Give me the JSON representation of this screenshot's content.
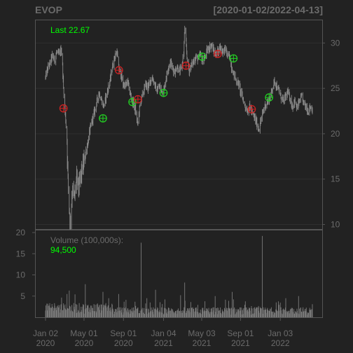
{
  "chart_data": {
    "type": "line",
    "ticker": "EVOP",
    "date_range": "[2020-01-02/2022-04-13]",
    "price_panel": {
      "last_label": "Last 22.67",
      "y_ticks": [
        30,
        25,
        20,
        15,
        10
      ],
      "ylim": [
        9.5,
        32.5
      ],
      "price_series": [
        [
          "2020-01-02",
          26.2
        ],
        [
          "2020-01-09",
          27.2
        ],
        [
          "2020-01-16",
          27.8
        ],
        [
          "2020-01-23",
          28.6
        ],
        [
          "2020-01-30",
          28.1
        ],
        [
          "2020-02-06",
          29.0
        ],
        [
          "2020-02-13",
          28.7
        ],
        [
          "2020-02-20",
          29.3
        ],
        [
          "2020-02-24",
          27.5
        ],
        [
          "2020-02-27",
          25.0
        ],
        [
          "2020-03-02",
          22.9
        ],
        [
          "2020-03-05",
          21.5
        ],
        [
          "2020-03-09",
          19.0
        ],
        [
          "2020-03-12",
          15.0
        ],
        [
          "2020-03-16",
          12.0
        ],
        [
          "2020-03-19",
          10.2
        ],
        [
          "2020-03-23",
          12.5
        ],
        [
          "2020-03-26",
          14.0
        ],
        [
          "2020-04-01",
          12.8
        ],
        [
          "2020-04-08",
          15.2
        ],
        [
          "2020-04-15",
          14.0
        ],
        [
          "2020-04-22",
          15.5
        ],
        [
          "2020-04-29",
          16.5
        ],
        [
          "2020-05-06",
          18.0
        ],
        [
          "2020-05-13",
          19.0
        ],
        [
          "2020-05-20",
          20.5
        ],
        [
          "2020-05-27",
          21.5
        ],
        [
          "2020-06-03",
          22.5
        ],
        [
          "2020-06-10",
          23.5
        ],
        [
          "2020-06-17",
          24.5
        ],
        [
          "2020-06-24",
          23.8
        ],
        [
          "2020-07-01",
          23.0
        ],
        [
          "2020-07-08",
          24.0
        ],
        [
          "2020-07-15",
          25.0
        ],
        [
          "2020-07-22",
          26.0
        ],
        [
          "2020-07-29",
          27.5
        ],
        [
          "2020-08-05",
          28.5
        ],
        [
          "2020-08-12",
          29.0
        ],
        [
          "2020-08-17",
          27.2
        ],
        [
          "2020-08-24",
          26.5
        ],
        [
          "2020-08-31",
          25.5
        ],
        [
          "2020-09-07",
          25.2
        ],
        [
          "2020-09-14",
          25.8
        ],
        [
          "2020-09-21",
          24.5
        ],
        [
          "2020-09-28",
          23.7
        ],
        [
          "2020-10-05",
          23.0
        ],
        [
          "2020-10-12",
          22.0
        ],
        [
          "2020-10-15",
          21.0
        ],
        [
          "2020-10-22",
          23.0
        ],
        [
          "2020-10-26",
          23.8
        ],
        [
          "2020-11-02",
          24.5
        ],
        [
          "2020-11-09",
          25.5
        ],
        [
          "2020-11-16",
          25.0
        ],
        [
          "2020-11-23",
          25.8
        ],
        [
          "2020-11-30",
          26.2
        ],
        [
          "2020-12-07",
          25.5
        ],
        [
          "2020-12-14",
          24.6
        ],
        [
          "2020-12-21",
          25.3
        ],
        [
          "2020-12-28",
          24.8
        ],
        [
          "2021-01-04",
          24.6
        ],
        [
          "2021-01-11",
          26.0
        ],
        [
          "2021-01-18",
          27.2
        ],
        [
          "2021-01-25",
          28.0
        ],
        [
          "2021-02-01",
          27.2
        ],
        [
          "2021-02-08",
          26.8
        ],
        [
          "2021-02-15",
          27.5
        ],
        [
          "2021-02-22",
          26.8
        ],
        [
          "2021-03-01",
          27.2
        ],
        [
          "2021-03-08",
          29.0
        ],
        [
          "2021-03-11",
          31.7
        ],
        [
          "2021-03-18",
          28.5
        ],
        [
          "2021-03-25",
          27.0
        ],
        [
          "2021-04-01",
          27.5
        ],
        [
          "2021-04-08",
          28.0
        ],
        [
          "2021-04-15",
          28.5
        ],
        [
          "2021-04-22",
          28.2
        ],
        [
          "2021-04-29",
          28.7
        ],
        [
          "2021-05-06",
          28.0
        ],
        [
          "2021-05-13",
          28.4
        ],
        [
          "2021-05-20",
          29.2
        ],
        [
          "2021-05-27",
          29.5
        ],
        [
          "2021-06-03",
          29.8
        ],
        [
          "2021-06-10",
          29.0
        ],
        [
          "2021-06-17",
          28.8
        ],
        [
          "2021-06-24",
          29.2
        ],
        [
          "2021-07-01",
          29.6
        ],
        [
          "2021-07-08",
          29.0
        ],
        [
          "2021-07-15",
          29.4
        ],
        [
          "2021-07-22",
          28.7
        ],
        [
          "2021-07-29",
          28.4
        ],
        [
          "2021-08-05",
          27.2
        ],
        [
          "2021-08-12",
          26.5
        ],
        [
          "2021-08-19",
          25.8
        ],
        [
          "2021-08-26",
          25.5
        ],
        [
          "2021-09-02",
          24.5
        ],
        [
          "2021-09-09",
          23.8
        ],
        [
          "2021-09-16",
          23.0
        ],
        [
          "2021-09-23",
          22.5
        ],
        [
          "2021-09-30",
          23.0
        ],
        [
          "2021-10-07",
          22.3
        ],
        [
          "2021-10-14",
          21.8
        ],
        [
          "2021-10-21",
          21.2
        ],
        [
          "2021-10-28",
          20.5
        ],
        [
          "2021-11-04",
          21.5
        ],
        [
          "2021-11-11",
          22.5
        ],
        [
          "2021-11-18",
          23.2
        ],
        [
          "2021-11-25",
          23.5
        ],
        [
          "2021-12-02",
          24.0
        ],
        [
          "2021-12-09",
          25.0
        ],
        [
          "2021-12-16",
          25.8
        ],
        [
          "2021-12-23",
          25.2
        ],
        [
          "2021-12-30",
          24.7
        ],
        [
          "2022-01-06",
          24.0
        ],
        [
          "2022-01-13",
          23.5
        ],
        [
          "2022-01-20",
          24.2
        ],
        [
          "2022-01-27",
          24.5
        ],
        [
          "2022-02-03",
          23.8
        ],
        [
          "2022-02-10",
          23.0
        ],
        [
          "2022-02-17",
          23.6
        ],
        [
          "2022-02-24",
          22.8
        ],
        [
          "2022-03-03",
          23.5
        ],
        [
          "2022-03-10",
          24.0
        ],
        [
          "2022-03-17",
          23.4
        ],
        [
          "2022-03-24",
          23.0
        ],
        [
          "2022-03-31",
          22.5
        ],
        [
          "2022-04-07",
          23.0
        ],
        [
          "2022-04-13",
          22.67
        ]
      ],
      "markers": [
        {
          "date": "2020-02-27",
          "price": 22.8,
          "color": "#cc2222"
        },
        {
          "date": "2020-06-29",
          "price": 21.7,
          "color": "#22cc22"
        },
        {
          "date": "2020-08-18",
          "price": 27.0,
          "color": "#cc2222"
        },
        {
          "date": "2020-09-29",
          "price": 23.5,
          "color": "#22cc22"
        },
        {
          "date": "2020-10-16",
          "price": 23.8,
          "color": "#cc2222"
        },
        {
          "date": "2021-01-04",
          "price": 24.5,
          "color": "#22cc22"
        },
        {
          "date": "2021-03-15",
          "price": 27.5,
          "color": "#cc2222"
        },
        {
          "date": "2021-05-04",
          "price": 28.5,
          "color": "#22cc22"
        },
        {
          "date": "2021-06-22",
          "price": 28.8,
          "color": "#cc2222"
        },
        {
          "date": "2021-08-10",
          "price": 28.3,
          "color": "#22cc22"
        },
        {
          "date": "2021-10-06",
          "price": 22.7,
          "color": "#cc2222"
        },
        {
          "date": "2021-11-29",
          "price": 24.0,
          "color": "#22cc22"
        }
      ]
    },
    "volume_panel": {
      "label": "Volume (100,000s):",
      "last_value": "94,500",
      "y_ticks": [
        20,
        15,
        10,
        5
      ],
      "ylim": [
        0,
        20.5
      ],
      "spikes": [
        [
          "2020-03-09",
          5.5
        ],
        [
          "2020-03-16",
          6.3
        ],
        [
          "2020-05-05",
          7.8
        ],
        [
          "2020-06-29",
          6.0
        ],
        [
          "2020-08-17",
          5.5
        ],
        [
          "2020-10-26",
          17.6
        ],
        [
          "2020-12-10",
          6.5
        ],
        [
          "2021-02-26",
          5.2
        ],
        [
          "2021-03-11",
          8.2
        ],
        [
          "2021-06-14",
          5.0
        ],
        [
          "2021-08-06",
          6.0
        ],
        [
          "2021-11-08",
          19.2
        ],
        [
          "2022-01-20",
          4.5
        ],
        [
          "2022-03-01",
          5.0
        ]
      ]
    },
    "x_ticks": [
      {
        "date": "2020-01-02",
        "line1": "Jan 02",
        "line2": "2020"
      },
      {
        "date": "2020-05-01",
        "line1": "May 01",
        "line2": "2020"
      },
      {
        "date": "2020-09-01",
        "line1": "Sep 01",
        "line2": "2020"
      },
      {
        "date": "2021-01-04",
        "line1": "Jan 04",
        "line2": "2021"
      },
      {
        "date": "2021-05-03",
        "line1": "May 03",
        "line2": "2021"
      },
      {
        "date": "2021-09-01",
        "line1": "Sep 01",
        "line2": "2021"
      },
      {
        "date": "2022-01-03",
        "line1": "Jan 03",
        "line2": "2022"
      }
    ],
    "colors": {
      "background": "#222222",
      "price_line": "#8a8a8a",
      "volume_bars": "#7a7a7a",
      "last_label": "#00ff00",
      "volume_value": "#00ff00",
      "volume_label": "#6b6b6b",
      "axis_text": "#6b6b6b"
    }
  }
}
